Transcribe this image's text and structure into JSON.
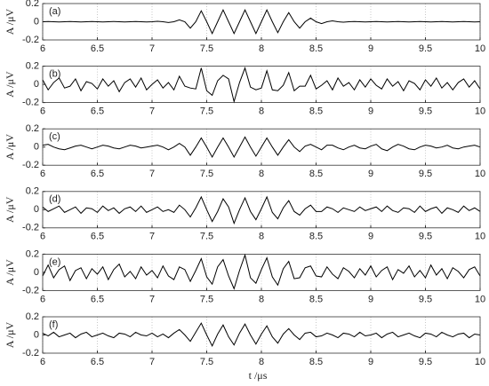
{
  "chart_data": {
    "type": "line",
    "y_label": "A /μV",
    "x_label": "t /μs",
    "x": [
      6,
      6.05,
      6.1,
      6.15,
      6.2,
      6.25,
      6.3,
      6.35,
      6.4,
      6.45,
      6.5,
      6.55,
      6.6,
      6.65,
      6.7,
      6.75,
      6.8,
      6.85,
      6.9,
      6.95,
      7,
      7.05,
      7.1,
      7.15,
      7.2,
      7.25,
      7.3,
      7.35,
      7.4,
      7.45,
      7.5,
      7.55,
      7.6,
      7.65,
      7.7,
      7.75,
      7.8,
      7.85,
      7.9,
      7.95,
      8,
      8.05,
      8.1,
      8.15,
      8.2,
      8.25,
      8.3,
      8.35,
      8.4,
      8.45,
      8.5,
      8.55,
      8.6,
      8.65,
      8.7,
      8.75,
      8.8,
      8.85,
      8.9,
      8.95,
      9,
      9.05,
      9.1,
      9.15,
      9.2,
      9.25,
      9.3,
      9.35,
      9.4,
      9.45,
      9.5,
      9.55,
      9.6,
      9.65,
      9.7,
      9.75,
      9.8,
      9.85,
      9.9,
      9.95,
      10
    ],
    "series": [
      {
        "name": "(a)",
        "color": "#000000",
        "values": [
          0,
          0.003,
          0,
          -0.003,
          0,
          0.003,
          0,
          -0.003,
          0,
          0.003,
          0,
          -0.003,
          0,
          0.003,
          0,
          -0.003,
          0,
          0.003,
          0,
          -0.003,
          0,
          0.005,
          0,
          -0.008,
          0,
          0.02,
          0,
          -0.07,
          0,
          0.12,
          0,
          -0.13,
          0,
          0.13,
          0,
          -0.13,
          0,
          0.13,
          0,
          -0.13,
          0,
          0.13,
          0,
          -0.12,
          0,
          0.1,
          0,
          -0.07,
          0,
          0.04,
          0,
          -0.02,
          0,
          0.01,
          0,
          -0.005,
          0,
          0.003,
          0,
          -0.003,
          0,
          0.003,
          0,
          -0.003,
          0,
          0.003,
          0,
          -0.003,
          0,
          0.003,
          0,
          -0.003,
          0,
          0.003,
          0,
          -0.003,
          0,
          0.003,
          0,
          -0.003,
          0
        ]
      },
      {
        "name": "(b)",
        "color": "#000000",
        "values": [
          0.05,
          -0.06,
          0.02,
          0.07,
          -0.04,
          -0.02,
          0.06,
          -0.07,
          0.03,
          0.01,
          -0.05,
          0.06,
          -0.02,
          0.04,
          -0.08,
          0.02,
          0.06,
          -0.03,
          0.07,
          -0.06,
          0.0,
          0.05,
          -0.04,
          0.02,
          -0.06,
          0.09,
          -0.02,
          -0.04,
          -0.05,
          0.18,
          -0.07,
          -0.12,
          0.04,
          0.1,
          0.06,
          -0.19,
          0.02,
          0.18,
          -0.03,
          -0.06,
          -0.04,
          0.15,
          -0.06,
          -0.07,
          -0.01,
          0.13,
          -0.07,
          -0.02,
          -0.02,
          0.1,
          -0.05,
          -0.01,
          0.04,
          -0.06,
          0.07,
          -0.02,
          0.02,
          -0.06,
          0.05,
          -0.03,
          0.06,
          -0.01,
          -0.05,
          0.06,
          -0.02,
          0.03,
          -0.07,
          0.04,
          0.01,
          -0.06,
          0.05,
          -0.02,
          0.07,
          -0.04,
          0.02,
          -0.06,
          0.02,
          0.06,
          -0.03,
          0.04,
          -0.05
        ]
      },
      {
        "name": "(c)",
        "color": "#000000",
        "values": [
          0.02,
          0.03,
          0.0,
          -0.02,
          -0.03,
          -0.01,
          0.01,
          0.02,
          0.0,
          -0.02,
          0.0,
          0.02,
          0.01,
          -0.01,
          -0.02,
          0.0,
          0.02,
          0.01,
          -0.01,
          0.0,
          0.01,
          0.02,
          0.0,
          -0.03,
          0.0,
          0.04,
          0.0,
          -0.09,
          0.0,
          0.1,
          0.0,
          -0.11,
          0.0,
          0.1,
          0.0,
          -0.11,
          0.0,
          0.11,
          0.0,
          -0.1,
          0.0,
          0.1,
          0.0,
          -0.09,
          0.0,
          0.08,
          0.0,
          -0.05,
          0.01,
          0.03,
          0.0,
          -0.03,
          0.02,
          0.02,
          -0.01,
          -0.03,
          0.0,
          0.02,
          -0.01,
          -0.02,
          0.01,
          0.03,
          -0.02,
          -0.04,
          0.0,
          0.03,
          0.01,
          -0.02,
          -0.03,
          0.0,
          0.02,
          0.01,
          -0.01,
          0.0,
          0.02,
          -0.01,
          -0.02,
          0.0,
          0.01,
          0.02,
          0.0
        ]
      },
      {
        "name": "(d)",
        "color": "#000000",
        "values": [
          0.03,
          -0.02,
          0.01,
          0.04,
          -0.03,
          0.0,
          0.03,
          -0.04,
          0.02,
          0.01,
          -0.03,
          0.04,
          -0.01,
          0.02,
          -0.04,
          0.01,
          0.03,
          -0.02,
          0.04,
          -0.03,
          0.0,
          0.03,
          -0.02,
          0.0,
          -0.03,
          0.05,
          0.0,
          -0.08,
          0.02,
          0.14,
          0.0,
          -0.13,
          -0.02,
          0.12,
          0.03,
          -0.15,
          0.0,
          0.13,
          -0.02,
          -0.11,
          0.01,
          0.14,
          -0.03,
          -0.1,
          0.02,
          0.1,
          -0.02,
          -0.06,
          0.01,
          0.05,
          -0.02,
          -0.02,
          0.03,
          0.01,
          -0.03,
          0.02,
          0.0,
          -0.02,
          0.03,
          -0.01,
          0.01,
          0.03,
          -0.02,
          0.04,
          -0.01,
          -0.03,
          0.02,
          0.01,
          -0.03,
          0.04,
          -0.02,
          0.01,
          0.03,
          -0.04,
          0.02,
          0.0,
          -0.03,
          0.04,
          -0.01,
          0.02,
          -0.02
        ]
      },
      {
        "name": "(e)",
        "color": "#000000",
        "values": [
          -0.04,
          0.08,
          -0.06,
          0.03,
          0.07,
          -0.09,
          0.02,
          0.05,
          -0.07,
          0.04,
          -0.02,
          0.06,
          -0.08,
          0.03,
          0.09,
          -0.05,
          0.01,
          -0.07,
          0.06,
          -0.03,
          0.02,
          -0.06,
          0.07,
          -0.04,
          -0.08,
          0.06,
          0.03,
          -0.1,
          0.02,
          0.15,
          -0.05,
          -0.13,
          0.06,
          0.14,
          -0.04,
          -0.18,
          0.02,
          0.19,
          -0.06,
          -0.12,
          0.03,
          0.16,
          -0.05,
          -0.14,
          0.04,
          0.12,
          -0.07,
          -0.06,
          0.05,
          0.07,
          -0.04,
          -0.05,
          0.06,
          -0.02,
          -0.07,
          0.05,
          0.01,
          -0.06,
          0.04,
          -0.03,
          0.07,
          -0.05,
          0.02,
          0.06,
          -0.08,
          0.03,
          -0.01,
          0.07,
          -0.05,
          0.02,
          -0.06,
          0.08,
          -0.03,
          0.04,
          -0.07,
          0.05,
          0.01,
          -0.06,
          0.03,
          0.06,
          -0.04
        ]
      },
      {
        "name": "(f)",
        "color": "#000000",
        "values": [
          0.02,
          -0.01,
          0.03,
          -0.02,
          0.0,
          0.02,
          -0.03,
          0.01,
          0.03,
          -0.02,
          0.0,
          0.02,
          -0.01,
          -0.03,
          0.02,
          0.01,
          -0.02,
          0.03,
          0.0,
          -0.01,
          0.02,
          -0.02,
          0.01,
          -0.03,
          0.02,
          0.06,
          0.0,
          -0.07,
          0.03,
          0.13,
          0.0,
          -0.12,
          0.01,
          0.11,
          -0.02,
          -0.11,
          0.02,
          0.12,
          0.0,
          -0.1,
          0.01,
          0.1,
          -0.02,
          -0.09,
          0.01,
          0.07,
          0.0,
          -0.05,
          0.02,
          0.03,
          -0.02,
          -0.01,
          0.02,
          0.0,
          -0.03,
          0.02,
          0.01,
          -0.02,
          0.03,
          -0.01,
          0.0,
          0.02,
          -0.03,
          0.01,
          0.03,
          -0.02,
          0.0,
          0.02,
          -0.01,
          -0.03,
          0.02,
          0.01,
          -0.02,
          0.03,
          0.0,
          -0.02,
          0.01,
          0.02,
          -0.03,
          0.01,
          0.0
        ]
      }
    ],
    "xlim": [
      6,
      10
    ],
    "xticks": [
      6,
      6.5,
      7,
      7.5,
      8,
      8.5,
      9,
      9.5,
      10
    ],
    "ylim": [
      -0.2,
      0.2
    ],
    "yticks": [
      -0.2,
      0,
      0.2
    ],
    "grid": true
  }
}
